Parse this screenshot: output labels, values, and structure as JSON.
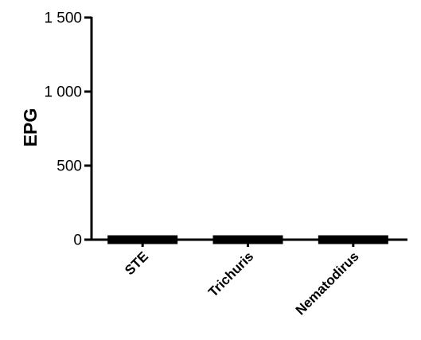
{
  "chart_data": {
    "type": "bar",
    "ylabel": "EPG",
    "xlabel": "",
    "ylim": [
      0,
      1500
    ],
    "ytick_values": [
      0,
      500,
      1000,
      1500
    ],
    "ytick_labels": [
      "0",
      "500",
      "1 000",
      "1 500"
    ],
    "categories": [
      "STE",
      "Trichuris",
      "Nematodirus"
    ],
    "values": [
      0,
      0,
      0
    ],
    "grid": false,
    "legend": "none",
    "colors": {
      "bar": "#000000",
      "axis": "#000000",
      "text": "#000000"
    }
  }
}
